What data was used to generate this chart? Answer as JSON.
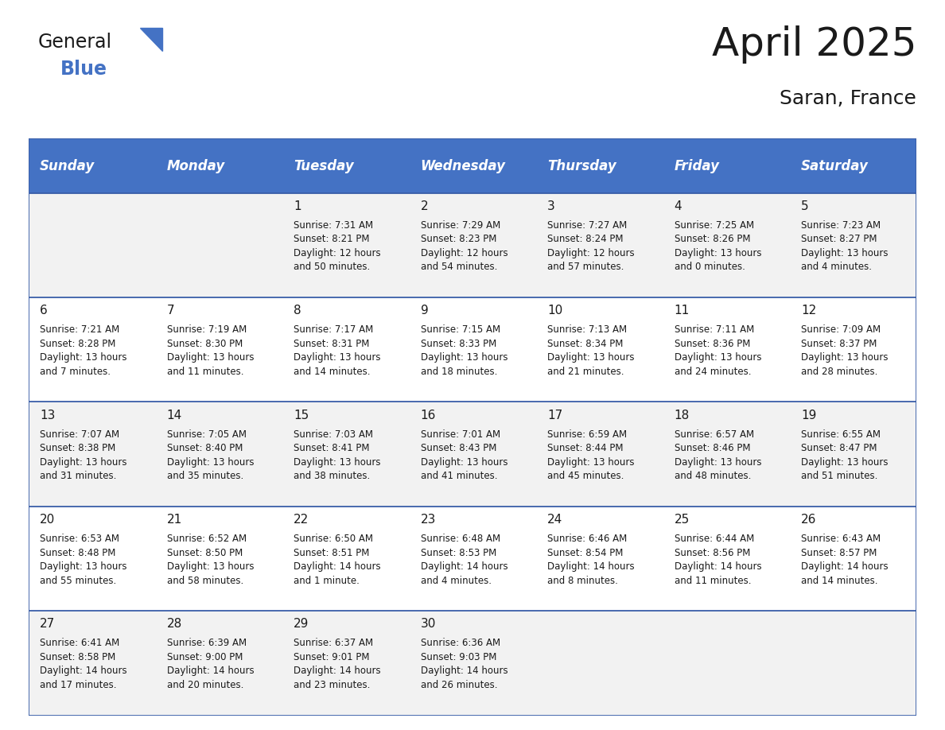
{
  "title": "April 2025",
  "subtitle": "Saran, France",
  "header_bg": "#4472C4",
  "header_text_color": "#FFFFFF",
  "cell_bg_odd": "#F2F2F2",
  "cell_bg_even": "#FFFFFF",
  "border_color": "#3A5EA8",
  "text_color": "#1a1a1a",
  "day_headers": [
    "Sunday",
    "Monday",
    "Tuesday",
    "Wednesday",
    "Thursday",
    "Friday",
    "Saturday"
  ],
  "days_data": [
    {
      "day": "",
      "col": 0,
      "row": 0,
      "info": ""
    },
    {
      "day": "",
      "col": 1,
      "row": 0,
      "info": ""
    },
    {
      "day": "1",
      "col": 2,
      "row": 0,
      "info": "Sunrise: 7:31 AM\nSunset: 8:21 PM\nDaylight: 12 hours\nand 50 minutes."
    },
    {
      "day": "2",
      "col": 3,
      "row": 0,
      "info": "Sunrise: 7:29 AM\nSunset: 8:23 PM\nDaylight: 12 hours\nand 54 minutes."
    },
    {
      "day": "3",
      "col": 4,
      "row": 0,
      "info": "Sunrise: 7:27 AM\nSunset: 8:24 PM\nDaylight: 12 hours\nand 57 minutes."
    },
    {
      "day": "4",
      "col": 5,
      "row": 0,
      "info": "Sunrise: 7:25 AM\nSunset: 8:26 PM\nDaylight: 13 hours\nand 0 minutes."
    },
    {
      "day": "5",
      "col": 6,
      "row": 0,
      "info": "Sunrise: 7:23 AM\nSunset: 8:27 PM\nDaylight: 13 hours\nand 4 minutes."
    },
    {
      "day": "6",
      "col": 0,
      "row": 1,
      "info": "Sunrise: 7:21 AM\nSunset: 8:28 PM\nDaylight: 13 hours\nand 7 minutes."
    },
    {
      "day": "7",
      "col": 1,
      "row": 1,
      "info": "Sunrise: 7:19 AM\nSunset: 8:30 PM\nDaylight: 13 hours\nand 11 minutes."
    },
    {
      "day": "8",
      "col": 2,
      "row": 1,
      "info": "Sunrise: 7:17 AM\nSunset: 8:31 PM\nDaylight: 13 hours\nand 14 minutes."
    },
    {
      "day": "9",
      "col": 3,
      "row": 1,
      "info": "Sunrise: 7:15 AM\nSunset: 8:33 PM\nDaylight: 13 hours\nand 18 minutes."
    },
    {
      "day": "10",
      "col": 4,
      "row": 1,
      "info": "Sunrise: 7:13 AM\nSunset: 8:34 PM\nDaylight: 13 hours\nand 21 minutes."
    },
    {
      "day": "11",
      "col": 5,
      "row": 1,
      "info": "Sunrise: 7:11 AM\nSunset: 8:36 PM\nDaylight: 13 hours\nand 24 minutes."
    },
    {
      "day": "12",
      "col": 6,
      "row": 1,
      "info": "Sunrise: 7:09 AM\nSunset: 8:37 PM\nDaylight: 13 hours\nand 28 minutes."
    },
    {
      "day": "13",
      "col": 0,
      "row": 2,
      "info": "Sunrise: 7:07 AM\nSunset: 8:38 PM\nDaylight: 13 hours\nand 31 minutes."
    },
    {
      "day": "14",
      "col": 1,
      "row": 2,
      "info": "Sunrise: 7:05 AM\nSunset: 8:40 PM\nDaylight: 13 hours\nand 35 minutes."
    },
    {
      "day": "15",
      "col": 2,
      "row": 2,
      "info": "Sunrise: 7:03 AM\nSunset: 8:41 PM\nDaylight: 13 hours\nand 38 minutes."
    },
    {
      "day": "16",
      "col": 3,
      "row": 2,
      "info": "Sunrise: 7:01 AM\nSunset: 8:43 PM\nDaylight: 13 hours\nand 41 minutes."
    },
    {
      "day": "17",
      "col": 4,
      "row": 2,
      "info": "Sunrise: 6:59 AM\nSunset: 8:44 PM\nDaylight: 13 hours\nand 45 minutes."
    },
    {
      "day": "18",
      "col": 5,
      "row": 2,
      "info": "Sunrise: 6:57 AM\nSunset: 8:46 PM\nDaylight: 13 hours\nand 48 minutes."
    },
    {
      "day": "19",
      "col": 6,
      "row": 2,
      "info": "Sunrise: 6:55 AM\nSunset: 8:47 PM\nDaylight: 13 hours\nand 51 minutes."
    },
    {
      "day": "20",
      "col": 0,
      "row": 3,
      "info": "Sunrise: 6:53 AM\nSunset: 8:48 PM\nDaylight: 13 hours\nand 55 minutes."
    },
    {
      "day": "21",
      "col": 1,
      "row": 3,
      "info": "Sunrise: 6:52 AM\nSunset: 8:50 PM\nDaylight: 13 hours\nand 58 minutes."
    },
    {
      "day": "22",
      "col": 2,
      "row": 3,
      "info": "Sunrise: 6:50 AM\nSunset: 8:51 PM\nDaylight: 14 hours\nand 1 minute."
    },
    {
      "day": "23",
      "col": 3,
      "row": 3,
      "info": "Sunrise: 6:48 AM\nSunset: 8:53 PM\nDaylight: 14 hours\nand 4 minutes."
    },
    {
      "day": "24",
      "col": 4,
      "row": 3,
      "info": "Sunrise: 6:46 AM\nSunset: 8:54 PM\nDaylight: 14 hours\nand 8 minutes."
    },
    {
      "day": "25",
      "col": 5,
      "row": 3,
      "info": "Sunrise: 6:44 AM\nSunset: 8:56 PM\nDaylight: 14 hours\nand 11 minutes."
    },
    {
      "day": "26",
      "col": 6,
      "row": 3,
      "info": "Sunrise: 6:43 AM\nSunset: 8:57 PM\nDaylight: 14 hours\nand 14 minutes."
    },
    {
      "day": "27",
      "col": 0,
      "row": 4,
      "info": "Sunrise: 6:41 AM\nSunset: 8:58 PM\nDaylight: 14 hours\nand 17 minutes."
    },
    {
      "day": "28",
      "col": 1,
      "row": 4,
      "info": "Sunrise: 6:39 AM\nSunset: 9:00 PM\nDaylight: 14 hours\nand 20 minutes."
    },
    {
      "day": "29",
      "col": 2,
      "row": 4,
      "info": "Sunrise: 6:37 AM\nSunset: 9:01 PM\nDaylight: 14 hours\nand 23 minutes."
    },
    {
      "day": "30",
      "col": 3,
      "row": 4,
      "info": "Sunrise: 6:36 AM\nSunset: 9:03 PM\nDaylight: 14 hours\nand 26 minutes."
    },
    {
      "day": "",
      "col": 4,
      "row": 4,
      "info": ""
    },
    {
      "day": "",
      "col": 5,
      "row": 4,
      "info": ""
    },
    {
      "day": "",
      "col": 6,
      "row": 4,
      "info": ""
    }
  ],
  "title_fontsize": 36,
  "subtitle_fontsize": 18,
  "header_fontsize": 12,
  "day_num_fontsize": 11,
  "info_fontsize": 8.5,
  "logo_general_color": "#1a1a1a",
  "logo_blue_color": "#4472C4",
  "logo_triangle_color": "#4472C4"
}
